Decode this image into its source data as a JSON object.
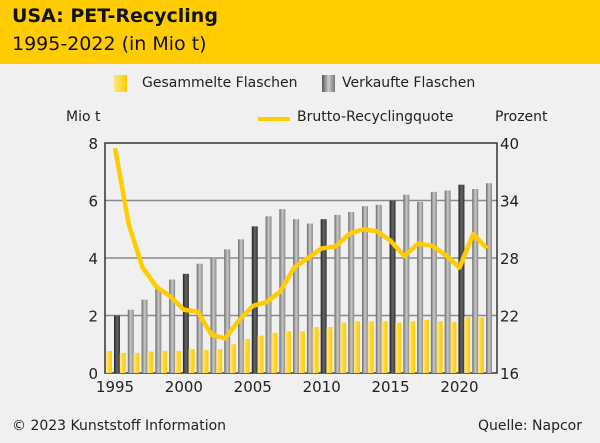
{
  "header": {
    "title": "USA: PET-Recycling",
    "subtitle": "1995-2022 (in Mio t)"
  },
  "footer": {
    "copyright": "© 2023 Kunststoff Information",
    "source": "Quelle: Napcor"
  },
  "colors": {
    "header": "#ffcc00",
    "collected": "#ffd84a",
    "sold": "#a0a0a0",
    "sold_highlight": "#444444",
    "rate": "#ffcc00"
  },
  "chart_data": {
    "type": "bar",
    "left_axis_label": "Mio t",
    "right_axis_label": "Prozent",
    "ylim_left": [
      0,
      8
    ],
    "yticks_left": [
      "0",
      "2",
      "4",
      "6",
      "8"
    ],
    "ylim_right": [
      16,
      40
    ],
    "yticks_right": [
      "16",
      "22",
      "28",
      "34",
      "40"
    ],
    "xticks": [
      "1995",
      "2000",
      "2005",
      "2010",
      "2015",
      "2020"
    ],
    "grid": true,
    "legend": "top",
    "x": [
      1995,
      1996,
      1997,
      1998,
      1999,
      2000,
      2001,
      2002,
      2003,
      2004,
      2005,
      2006,
      2007,
      2008,
      2009,
      2010,
      2011,
      2012,
      2013,
      2014,
      2015,
      2016,
      2017,
      2018,
      2019,
      2020,
      2021,
      2022
    ],
    "series": [
      {
        "name": "Gesammelte Flaschen",
        "type": "bar",
        "axis": "left",
        "values": [
          0.77,
          0.7,
          0.7,
          0.75,
          0.77,
          0.77,
          0.83,
          0.8,
          0.83,
          1.0,
          1.18,
          1.3,
          1.4,
          1.45,
          1.45,
          1.6,
          1.6,
          1.75,
          1.8,
          1.8,
          1.8,
          1.75,
          1.8,
          1.85,
          1.8,
          1.78,
          1.95,
          1.93
        ]
      },
      {
        "name": "Verkaufte Flaschen",
        "type": "bar",
        "axis": "left",
        "values": [
          2.0,
          2.2,
          2.55,
          2.95,
          3.25,
          3.45,
          3.8,
          4.0,
          4.3,
          4.65,
          5.1,
          5.45,
          5.7,
          5.35,
          5.2,
          5.35,
          5.5,
          5.6,
          5.8,
          5.85,
          6.0,
          6.2,
          5.95,
          6.3,
          6.35,
          6.55,
          6.4,
          6.6
        ]
      },
      {
        "name": "Brutto-Recyclingquote",
        "type": "line",
        "axis": "right",
        "values": [
          39.5,
          31.5,
          27,
          25,
          24,
          22.6,
          22.4,
          20,
          19.6,
          21.5,
          23,
          23.4,
          24.5,
          27,
          28,
          29,
          29.2,
          30.5,
          31,
          30.8,
          29.8,
          28.2,
          29.5,
          29.3,
          28.3,
          27,
          30.5,
          29
        ]
      }
    ]
  }
}
